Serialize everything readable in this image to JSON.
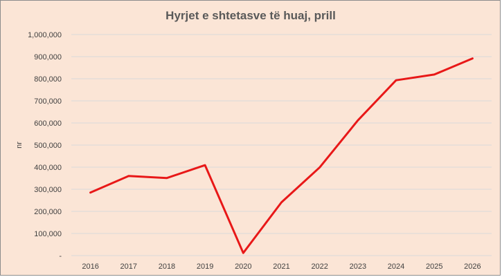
{
  "chart_data": {
    "type": "line",
    "title": "Hyrjet e shtetasve të huaj, prill",
    "xlabel": "",
    "ylabel": "nr",
    "categories": [
      "2016",
      "2017",
      "2018",
      "2019",
      "2020",
      "2021",
      "2022",
      "2023",
      "2024",
      "2025",
      "2026"
    ],
    "series": [
      {
        "values": [
          285000,
          360000,
          351000,
          409000,
          12000,
          241000,
          399000,
          612000,
          793000,
          819000,
          892000
        ]
      }
    ],
    "ylim": [
      0,
      1000000
    ],
    "yticks": [
      0,
      100000,
      200000,
      300000,
      400000,
      500000,
      600000,
      700000,
      800000,
      900000,
      1000000
    ],
    "ytick_labels": [
      "-",
      "100,000",
      "200,000",
      "300,000",
      "400,000",
      "500,000",
      "600,000",
      "700,000",
      "800,000",
      "900,000",
      "1,000,000"
    ],
    "grid": true,
    "legend": "none",
    "colors": {
      "line": "#e81818",
      "background": "#fbe5d6",
      "grid": "#d9d9d9",
      "text": "#404040"
    }
  }
}
